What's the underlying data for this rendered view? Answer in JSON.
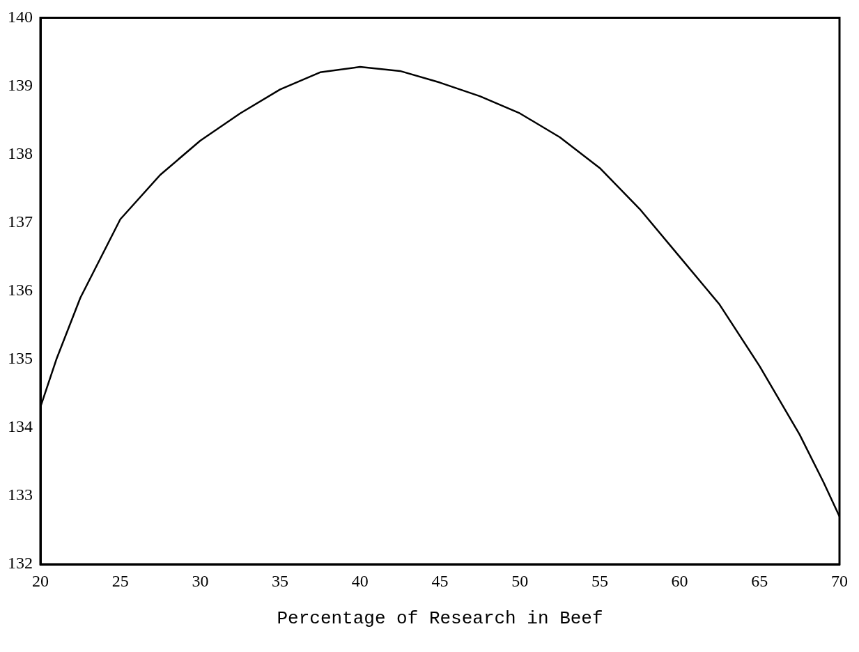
{
  "chart_data": {
    "type": "line",
    "xlabel": "Percentage of Research in Beef",
    "x": [
      20,
      21,
      22.5,
      25,
      27.5,
      30,
      32.5,
      35,
      37.5,
      40,
      42.5,
      45,
      47.5,
      50,
      52.5,
      55,
      57.5,
      60,
      62.5,
      65,
      67.5,
      69,
      70
    ],
    "values": [
      134.3,
      135.0,
      135.9,
      137.05,
      137.7,
      138.2,
      138.6,
      138.95,
      139.2,
      139.28,
      139.22,
      139.05,
      138.85,
      138.6,
      138.25,
      137.8,
      137.2,
      136.5,
      135.8,
      134.9,
      133.9,
      133.2,
      132.7
    ],
    "color": "#000000",
    "xlim": [
      20,
      70
    ],
    "xticks": [
      20,
      25,
      30,
      35,
      40,
      45,
      50,
      55,
      60,
      65,
      70
    ],
    "ylim": [
      132,
      140
    ],
    "yticks": [
      132,
      133,
      134,
      135,
      136,
      137,
      138,
      139,
      140
    ],
    "grid": false,
    "marker": "none",
    "line_style": "solid"
  }
}
